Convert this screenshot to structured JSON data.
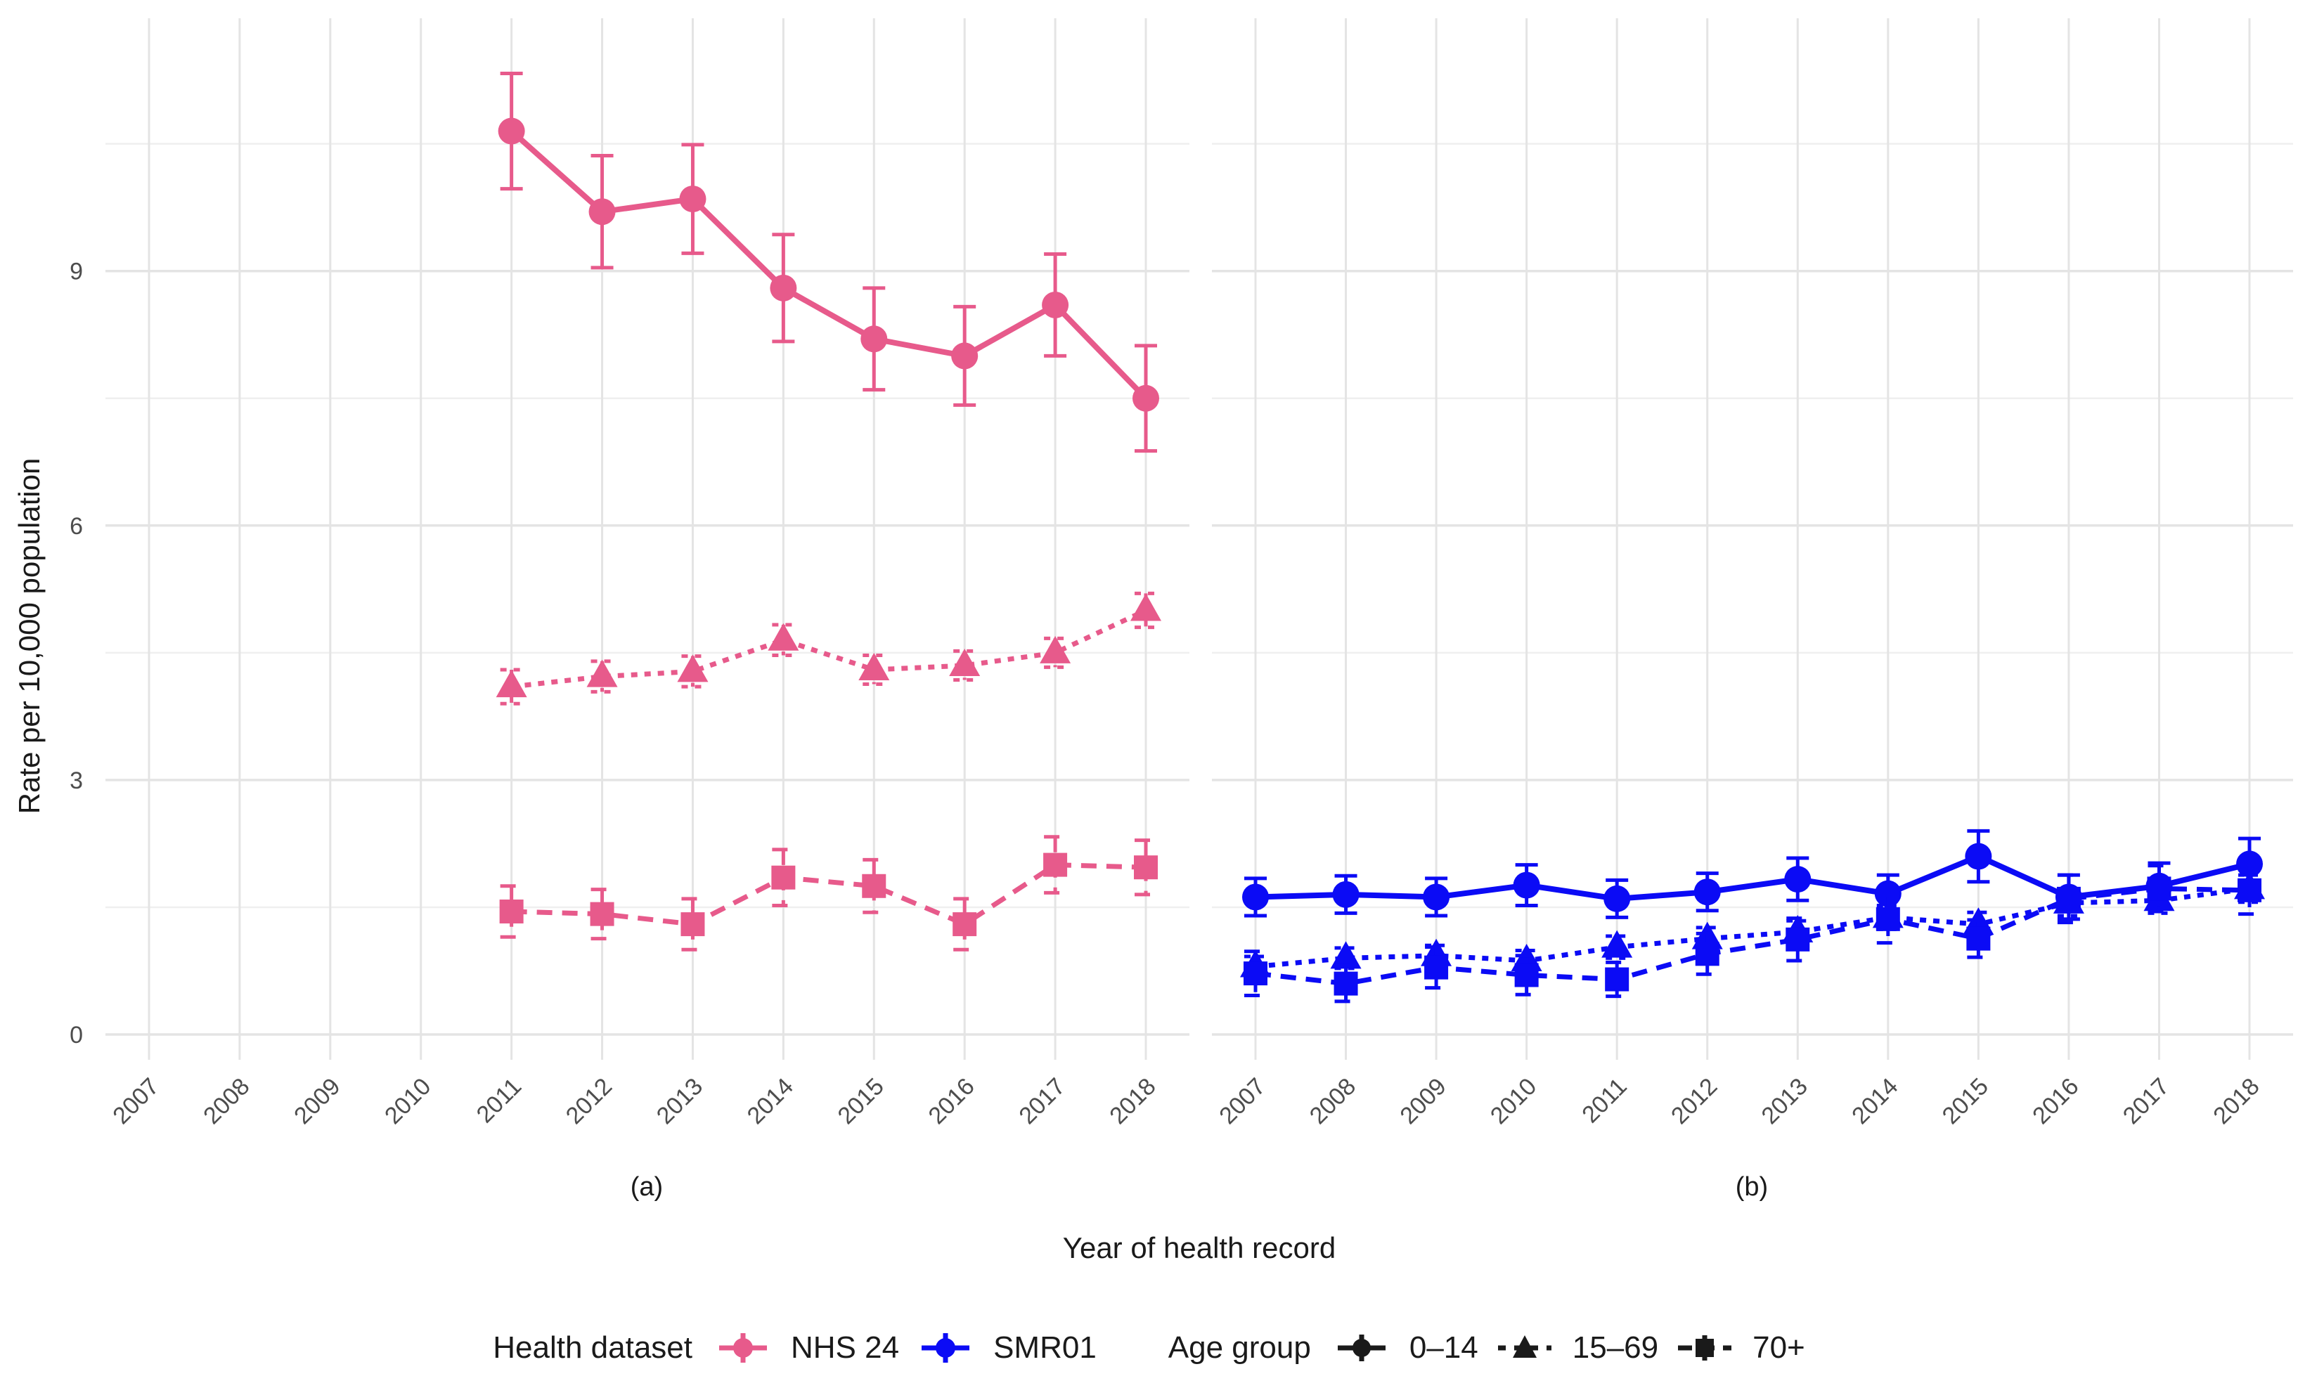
{
  "colors": {
    "nhs24": "#E75A8B",
    "smr01": "#0B0BF5",
    "age_key": "#1A1A1A",
    "grid_major": "#E4E4E4",
    "grid_minor": "#EFEFEF",
    "tick_label": "#4D4D4D",
    "text": "#1A1A1A",
    "background": "#FFFFFF"
  },
  "chart_data": {
    "type": "line",
    "title": "",
    "xlabel": "Year of health record",
    "ylabel": "Rate per 10,000 population",
    "x": [
      2007,
      2008,
      2009,
      2010,
      2011,
      2012,
      2013,
      2014,
      2015,
      2016,
      2017,
      2018
    ],
    "yticks": [
      0,
      3,
      6,
      9
    ],
    "yminor": [
      1.5,
      4.5,
      7.5,
      10.5
    ],
    "ylim": [
      -0.3,
      12.0
    ],
    "grid": true,
    "legend_position": "bottom",
    "error_bars": true,
    "facets": [
      {
        "caption": "(a)",
        "dataset": "NHS 24",
        "color": "#E75A8B",
        "series": [
          {
            "name": "0–14",
            "marker": "circle",
            "linetype": "solid",
            "years": [
              2011,
              2012,
              2013,
              2014,
              2015,
              2016,
              2017,
              2018
            ],
            "values": [
              10.65,
              9.7,
              9.85,
              8.8,
              8.2,
              8.0,
              8.6,
              7.5
            ],
            "err": [
              0.68,
              0.66,
              0.64,
              0.63,
              0.6,
              0.58,
              0.6,
              0.62
            ]
          },
          {
            "name": "15–69",
            "marker": "triangle",
            "linetype": "shortdash",
            "years": [
              2011,
              2012,
              2013,
              2014,
              2015,
              2016,
              2017,
              2018
            ],
            "values": [
              4.1,
              4.22,
              4.28,
              4.65,
              4.3,
              4.35,
              4.5,
              5.0
            ],
            "err": [
              0.2,
              0.18,
              0.18,
              0.18,
              0.17,
              0.17,
              0.17,
              0.2
            ]
          },
          {
            "name": "70+",
            "marker": "square",
            "linetype": "longdash",
            "years": [
              2011,
              2012,
              2013,
              2014,
              2015,
              2016,
              2017,
              2018
            ],
            "values": [
              1.45,
              1.42,
              1.3,
              1.85,
              1.75,
              1.3,
              2.0,
              1.97
            ],
            "err": [
              0.3,
              0.29,
              0.3,
              0.33,
              0.31,
              0.3,
              0.33,
              0.32
            ]
          }
        ]
      },
      {
        "caption": "(b)",
        "dataset": "SMR01",
        "color": "#0B0BF5",
        "series": [
          {
            "name": "0–14",
            "marker": "circle",
            "linetype": "solid",
            "years": [
              2007,
              2008,
              2009,
              2010,
              2011,
              2012,
              2013,
              2014,
              2015,
              2016,
              2017,
              2018
            ],
            "values": [
              1.62,
              1.65,
              1.62,
              1.76,
              1.6,
              1.68,
              1.83,
              1.66,
              2.1,
              1.62,
              1.75,
              2.01
            ],
            "err": [
              0.22,
              0.22,
              0.22,
              0.24,
              0.22,
              0.22,
              0.25,
              0.22,
              0.3,
              0.26,
              0.27,
              0.3
            ]
          },
          {
            "name": "15–69",
            "marker": "triangle",
            "linetype": "shortdash",
            "years": [
              2007,
              2008,
              2009,
              2010,
              2011,
              2012,
              2013,
              2014,
              2015,
              2016,
              2017,
              2018
            ],
            "values": [
              0.8,
              0.9,
              0.93,
              0.87,
              1.03,
              1.13,
              1.21,
              1.38,
              1.3,
              1.55,
              1.58,
              1.72
            ],
            "err": [
              0.12,
              0.12,
              0.12,
              0.12,
              0.13,
              0.13,
              0.13,
              0.14,
              0.14,
              0.15,
              0.15,
              0.16
            ]
          },
          {
            "name": "70+",
            "marker": "square",
            "linetype": "longdash",
            "years": [
              2007,
              2008,
              2009,
              2010,
              2011,
              2012,
              2013,
              2014,
              2015,
              2016,
              2017,
              2018
            ],
            "values": [
              0.72,
              0.6,
              0.79,
              0.7,
              0.65,
              0.95,
              1.12,
              1.36,
              1.13,
              1.6,
              1.72,
              1.7
            ],
            "err": [
              0.26,
              0.21,
              0.24,
              0.23,
              0.2,
              0.24,
              0.25,
              0.28,
              0.22,
              0.28,
              0.27,
              0.28
            ]
          }
        ]
      }
    ]
  },
  "legend": {
    "dataset_title": "Health dataset",
    "age_title": "Age group",
    "datasets": [
      {
        "label": "NHS 24"
      },
      {
        "label": "SMR01"
      }
    ],
    "age_groups": [
      {
        "label": "0–14",
        "marker": "circle",
        "linetype": "solid"
      },
      {
        "label": "15–69",
        "marker": "triangle",
        "linetype": "shortdash"
      },
      {
        "label": "70+",
        "marker": "square",
        "linetype": "longdash"
      }
    ]
  }
}
